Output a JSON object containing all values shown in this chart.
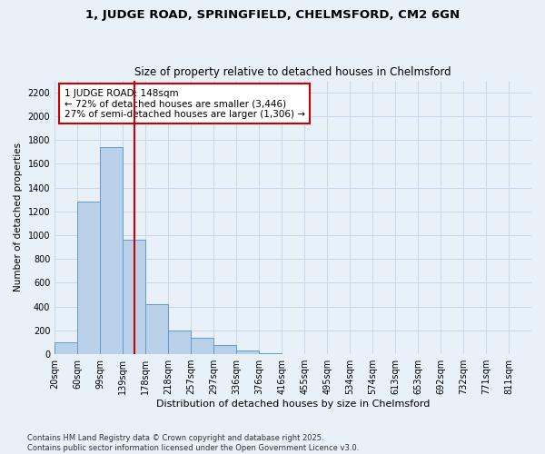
{
  "title1": "1, JUDGE ROAD, SPRINGFIELD, CHELMSFORD, CM2 6GN",
  "title2": "Size of property relative to detached houses in Chelmsford",
  "xlabel": "Distribution of detached houses by size in Chelmsford",
  "ylabel": "Number of detached properties",
  "footnote": "Contains HM Land Registry data © Crown copyright and database right 2025.\nContains public sector information licensed under the Open Government Licence v3.0.",
  "bin_labels": [
    "20sqm",
    "60sqm",
    "99sqm",
    "139sqm",
    "178sqm",
    "218sqm",
    "257sqm",
    "297sqm",
    "336sqm",
    "376sqm",
    "416sqm",
    "455sqm",
    "495sqm",
    "534sqm",
    "574sqm",
    "613sqm",
    "653sqm",
    "692sqm",
    "732sqm",
    "771sqm",
    "811sqm"
  ],
  "values": [
    100,
    1280,
    1740,
    960,
    420,
    200,
    140,
    80,
    30,
    10,
    0,
    0,
    0,
    0,
    0,
    0,
    0,
    0,
    0,
    0,
    0
  ],
  "bar_color": "#b8d0e8",
  "bar_edge_color": "#6699cc",
  "grid_color": "#c8d8ea",
  "background_color": "#e8f0f8",
  "vline_x_pos": 3.5,
  "vline_color": "#cc0000",
  "annotation_text": "1 JUDGE ROAD: 148sqm\n← 72% of detached houses are smaller (3,446)\n27% of semi-detached houses are larger (1,306) →",
  "annotation_box_color": "#ffffff",
  "annotation_box_edge": "#cc0000",
  "ylim": [
    0,
    2300
  ],
  "yticks": [
    0,
    200,
    400,
    600,
    800,
    1000,
    1200,
    1400,
    1600,
    1800,
    2000,
    2200
  ],
  "title1_fontsize": 9.5,
  "title2_fontsize": 8.5,
  "xlabel_fontsize": 8,
  "ylabel_fontsize": 7.5,
  "tick_fontsize": 7,
  "annot_fontsize": 7.5,
  "footnote_fontsize": 6
}
